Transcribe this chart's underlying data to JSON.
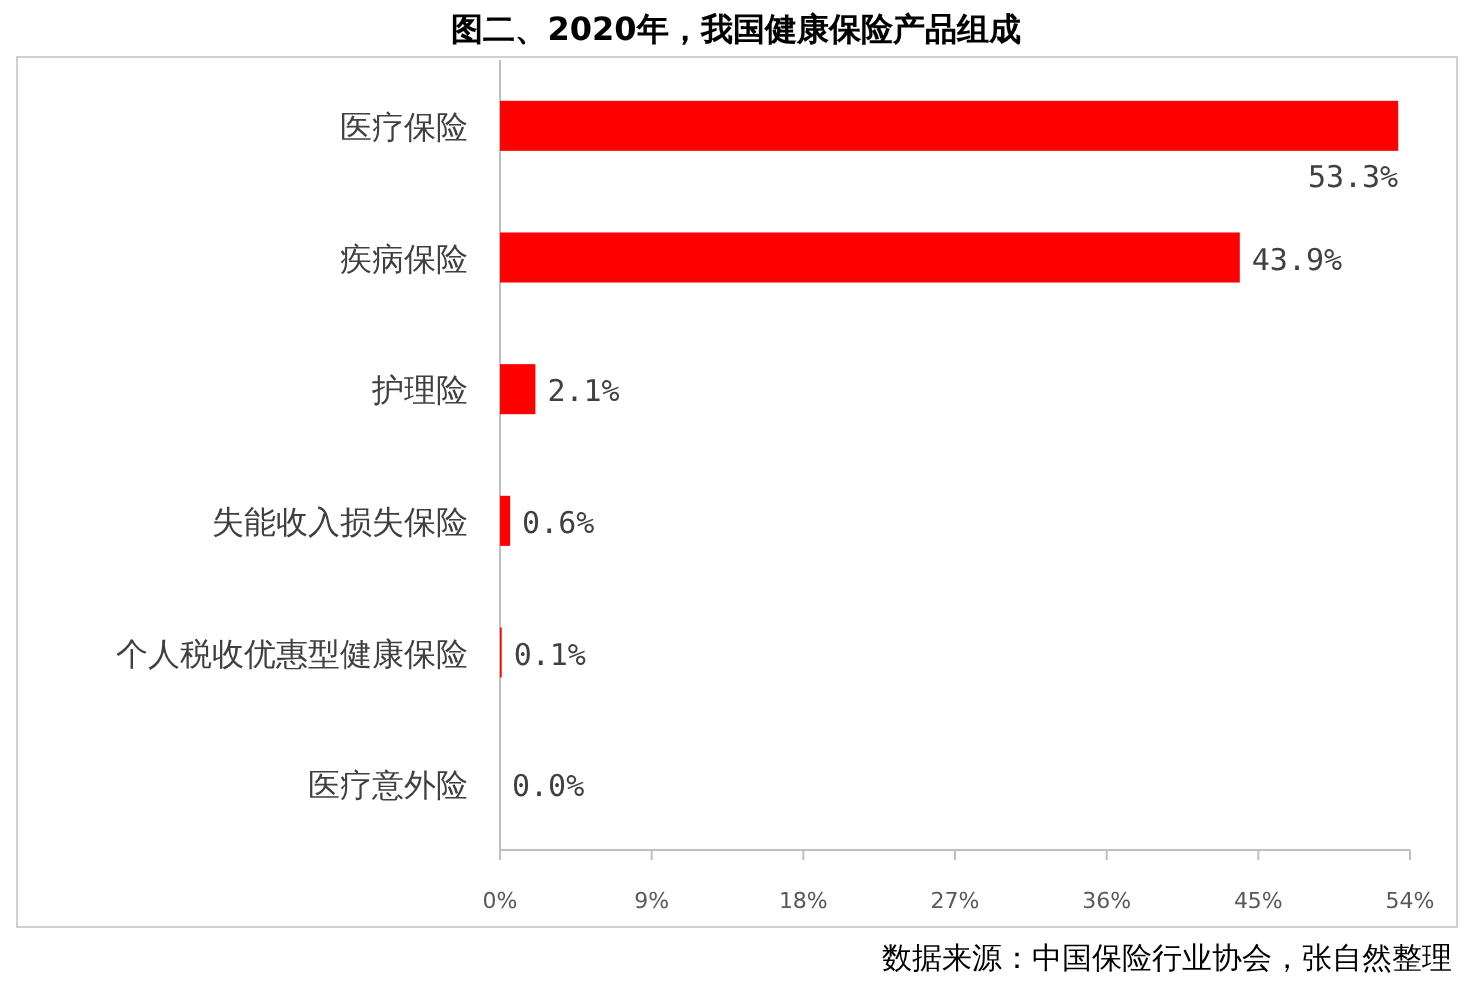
{
  "chart_data": {
    "type": "bar",
    "orientation": "horizontal",
    "title": "图二、2020年，我国健康保险产品组成",
    "categories": [
      "医疗保险",
      "疾病保险",
      "护理险",
      "失能收入损失保险",
      "个人税收优惠型健康保险",
      "医疗意外险"
    ],
    "values": [
      53.3,
      43.9,
      2.1,
      0.6,
      0.1,
      0.0
    ],
    "value_labels": [
      "53.3%",
      "43.9%",
      "2.1%",
      "0.6%",
      "0.1%",
      "0.0%"
    ],
    "color": "#ff0000",
    "xlim": [
      0,
      54
    ],
    "xticks": [
      {
        "value": 0,
        "label": "0%"
      },
      {
        "value": 9,
        "label": "9%"
      },
      {
        "value": 18,
        "label": "18%"
      },
      {
        "value": 27,
        "label": "27%"
      },
      {
        "value": 36,
        "label": "36%"
      },
      {
        "value": 45,
        "label": "45%"
      },
      {
        "value": 54,
        "label": "54%"
      }
    ],
    "annotations": [
      "数据来源：中国保险行业协会，张自然整理"
    ],
    "grid": false
  }
}
